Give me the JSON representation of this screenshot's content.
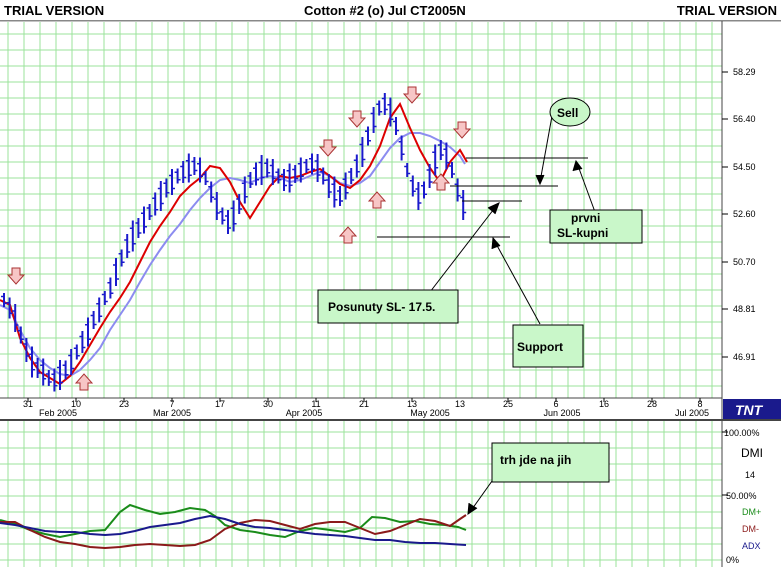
{
  "titlebar": {
    "left": "TRIAL VERSION",
    "center": "Cotton #2 (o) Jul CT2005N",
    "right": "TRIAL VERSION"
  },
  "colors": {
    "background": "#ffffff",
    "grid": "#9be39b",
    "bars": "#1a1acc",
    "ma_fast": "#dd0000",
    "ma_slow": "#8c8cf0",
    "callout_fill": "#c9f7c9",
    "dmi_plus": "#1a8c1a",
    "dmi_minus": "#8b1a1a",
    "adx": "#1a1a8c"
  },
  "price_axis": [
    "58.29",
    "56.40",
    "54.50",
    "52.60",
    "50.70",
    "48.81",
    "46.91"
  ],
  "date_axis": {
    "days": [
      "31",
      "10",
      "23",
      "7",
      "17",
      "30",
      "11",
      "21",
      "13",
      "25",
      "6",
      "16",
      "28",
      "8"
    ],
    "months": [
      "Feb 2005",
      "Mar 2005",
      "Apr 2005",
      "May 2005",
      "Jun 2005",
      "Jul 2005"
    ]
  },
  "logo": "TNT",
  "annotations": {
    "sell": "Sell",
    "prvni_line1": "prvni",
    "prvni_line2": "SL-kupni",
    "posunuty": "Posunuty SL- 17.5.",
    "support": "Support",
    "trh": "trh jde na jih"
  },
  "indicator_panel": {
    "title": "DMI",
    "axis": [
      "100.00%",
      "14",
      "50.00%",
      "0%"
    ],
    "legend": [
      "DM+",
      "DM-",
      "ADX"
    ]
  }
}
